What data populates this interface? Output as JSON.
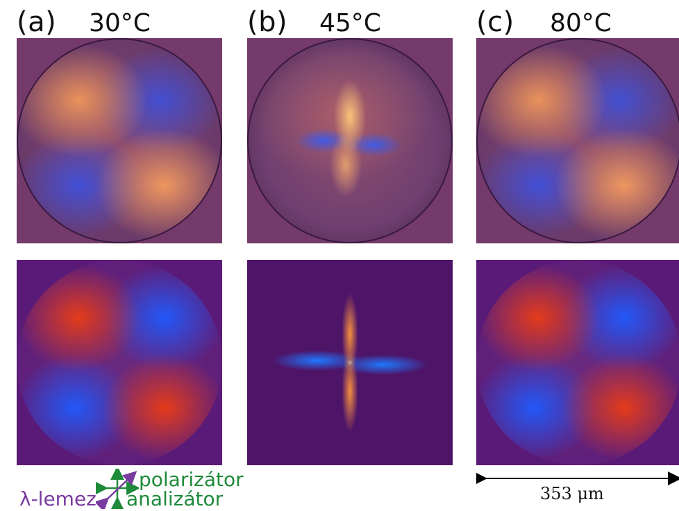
{
  "panels": [
    {
      "label": "(a)",
      "temperature": "30°C"
    },
    {
      "label": "(b)",
      "temperature": "45°C"
    },
    {
      "label": "(c)",
      "temperature": "80°C"
    }
  ],
  "legend": {
    "polarizer": "polarizátor",
    "analyzer": "analizátor",
    "waveplate": "λ-lemez",
    "polarizer_color": "#1f8a3a",
    "waveplate_color": "#7a3aa0"
  },
  "scale_bar": {
    "text": "353 μm"
  }
}
